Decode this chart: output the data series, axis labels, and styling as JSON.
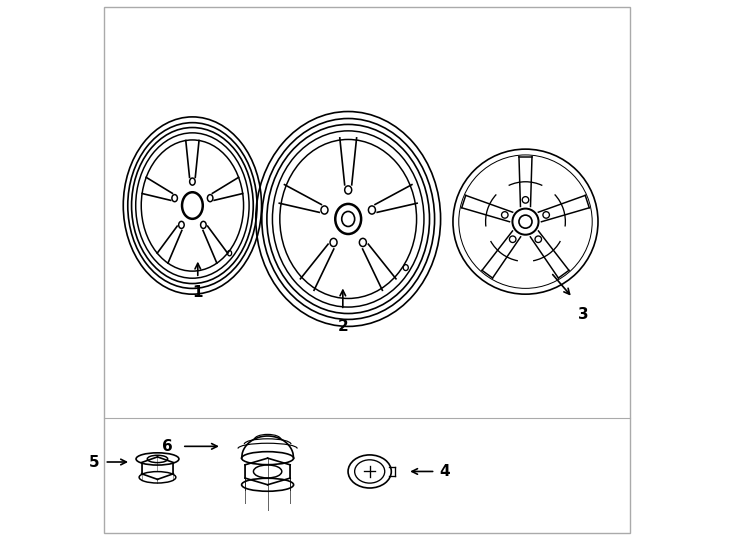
{
  "background_color": "#ffffff",
  "line_color": "#000000",
  "line_width": 1.2,
  "fig_width": 7.34,
  "fig_height": 5.4,
  "dpi": 100
}
